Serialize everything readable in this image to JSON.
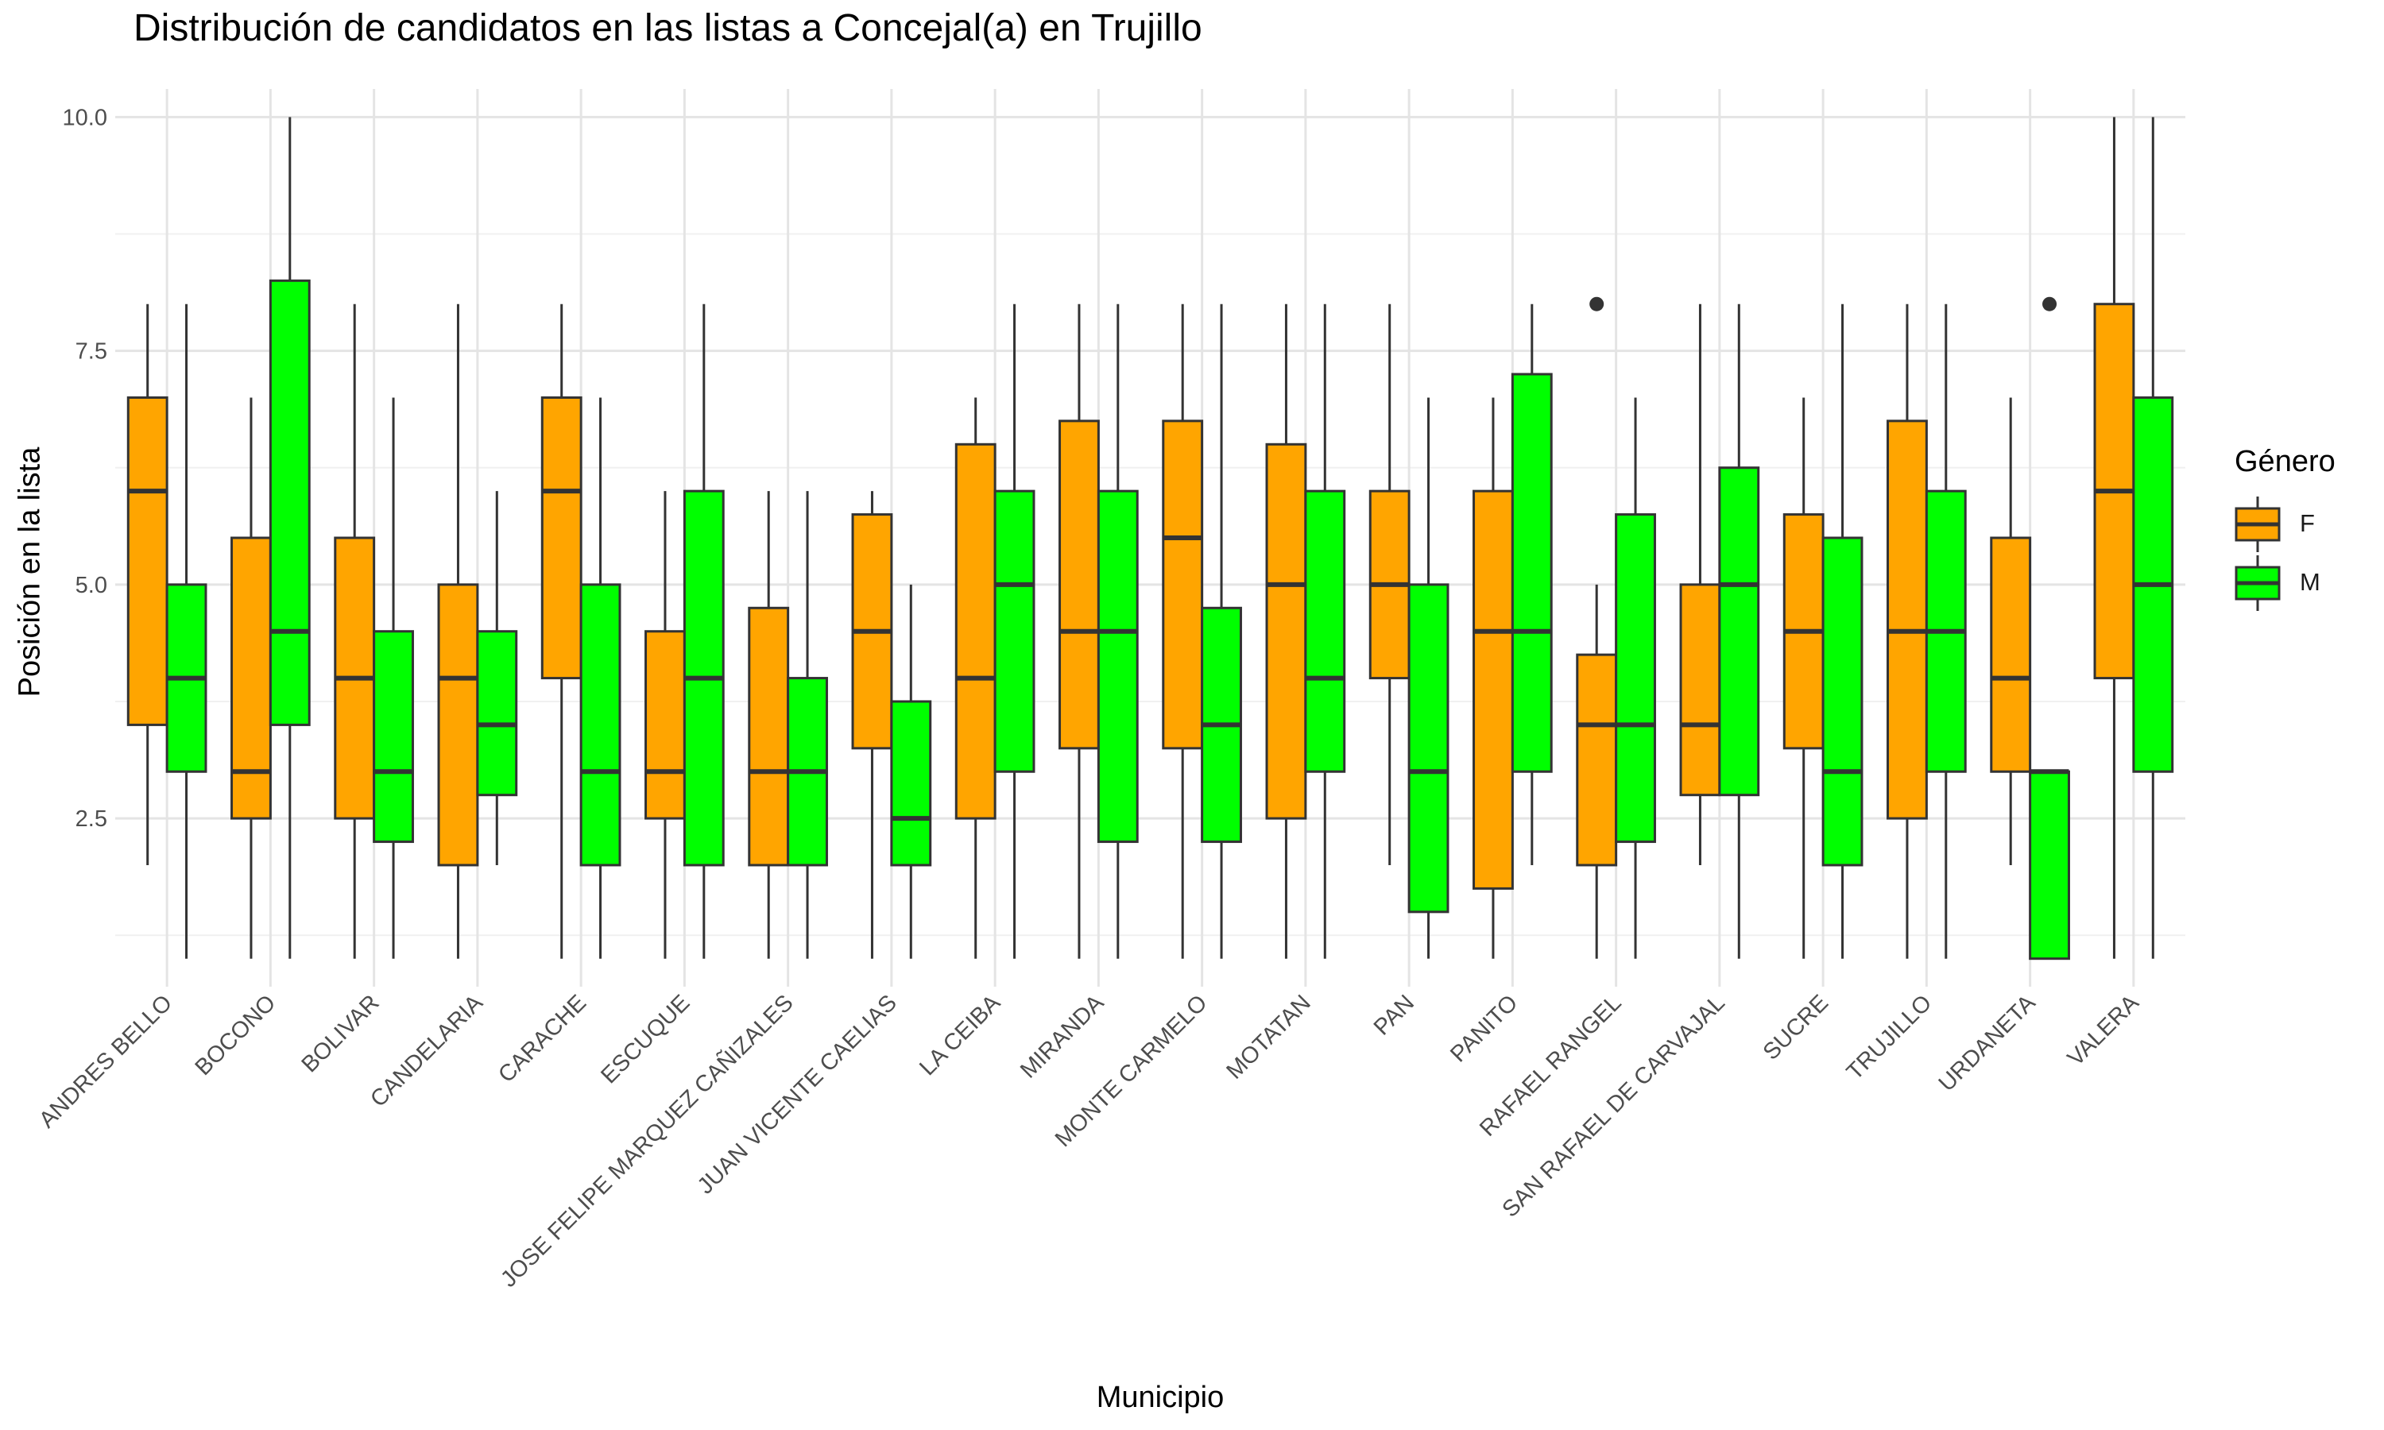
{
  "chart_data": {
    "type": "boxplot",
    "title": "Distribución de candidatos en las listas a Concejal(a) en Trujillo",
    "xlabel": "Municipio",
    "ylabel": "Posición en la lista",
    "ylim": [
      0.7,
      10.3
    ],
    "yticks": [
      "2.5",
      "5.0",
      "7.5",
      "10.0"
    ],
    "ytick_values": [
      2.5,
      5.0,
      7.5,
      10.0
    ],
    "grid": true,
    "legend": {
      "title": "Género",
      "position": "right",
      "entries": [
        {
          "label": "F",
          "color": "#FFA500"
        },
        {
          "label": "M",
          "color": "#00FF00"
        }
      ]
    },
    "categories": [
      "ANDRES BELLO",
      "BOCONO",
      "BOLIVAR",
      "CANDELARIA",
      "CARACHE",
      "ESCUQUE",
      "JOSE FELIPE MARQUEZ CAÑIZALES",
      "JUAN VICENTE CAELIAS",
      "LA CEIBA",
      "MIRANDA",
      "MONTE CARMELO",
      "MOTATAN",
      "PAN",
      "PANITO",
      "RAFAEL RANGEL",
      "SAN RAFAEL DE CARVAJAL",
      "SUCRE",
      "TRUJILLO",
      "URDANETA",
      "VALERA"
    ],
    "series": [
      {
        "name": "F",
        "color": "#FFA500",
        "boxes": [
          {
            "min": 2,
            "q1": 3.5,
            "median": 6,
            "q3": 7,
            "max": 8
          },
          {
            "min": 1,
            "q1": 2.5,
            "median": 3,
            "q3": 5.5,
            "max": 7
          },
          {
            "min": 1,
            "q1": 2.5,
            "median": 4,
            "q3": 5.5,
            "max": 8
          },
          {
            "min": 1,
            "q1": 2,
            "median": 4,
            "q3": 5,
            "max": 8
          },
          {
            "min": 1,
            "q1": 4,
            "median": 6,
            "q3": 7,
            "max": 8
          },
          {
            "min": 1,
            "q1": 2.5,
            "median": 3,
            "q3": 4.5,
            "max": 6
          },
          {
            "min": 1,
            "q1": 2,
            "median": 3,
            "q3": 4.75,
            "max": 6
          },
          {
            "min": 1,
            "q1": 3.25,
            "median": 4.5,
            "q3": 5.75,
            "max": 6
          },
          {
            "min": 1,
            "q1": 2.5,
            "median": 4,
            "q3": 6.5,
            "max": 7
          },
          {
            "min": 1,
            "q1": 3.25,
            "median": 4.5,
            "q3": 6.75,
            "max": 8
          },
          {
            "min": 1,
            "q1": 3.25,
            "median": 5.5,
            "q3": 6.75,
            "max": 8
          },
          {
            "min": 1,
            "q1": 2.5,
            "median": 5,
            "q3": 6.5,
            "max": 8
          },
          {
            "min": 2,
            "q1": 4,
            "median": 5,
            "q3": 6,
            "max": 8
          },
          {
            "min": 1,
            "q1": 1.75,
            "median": 4.5,
            "q3": 6,
            "max": 7
          },
          {
            "min": 1,
            "q1": 2,
            "median": 3.5,
            "q3": 4.25,
            "max": 5,
            "outliers": [
              8
            ]
          },
          {
            "min": 2,
            "q1": 2.75,
            "median": 3.5,
            "q3": 5,
            "max": 8
          },
          {
            "min": 1,
            "q1": 3.25,
            "median": 4.5,
            "q3": 5.75,
            "max": 7
          },
          {
            "min": 1,
            "q1": 2.5,
            "median": 4.5,
            "q3": 6.75,
            "max": 8
          },
          {
            "min": 2,
            "q1": 3,
            "median": 4,
            "q3": 5.5,
            "max": 7
          },
          {
            "min": 1,
            "q1": 4,
            "median": 6,
            "q3": 8,
            "max": 10
          }
        ]
      },
      {
        "name": "M",
        "color": "#00FF00",
        "boxes": [
          {
            "min": 1,
            "q1": 3,
            "median": 4,
            "q3": 5,
            "max": 8
          },
          {
            "min": 1,
            "q1": 3.5,
            "median": 4.5,
            "q3": 8.25,
            "max": 10
          },
          {
            "min": 1,
            "q1": 2.25,
            "median": 3,
            "q3": 4.5,
            "max": 7
          },
          {
            "min": 2,
            "q1": 2.75,
            "median": 3.5,
            "q3": 4.5,
            "max": 6
          },
          {
            "min": 1,
            "q1": 2,
            "median": 3,
            "q3": 5,
            "max": 7
          },
          {
            "min": 1,
            "q1": 2,
            "median": 4,
            "q3": 6,
            "max": 8
          },
          {
            "min": 1,
            "q1": 2,
            "median": 3,
            "q3": 4,
            "max": 6
          },
          {
            "min": 1,
            "q1": 2,
            "median": 2.5,
            "q3": 3.75,
            "max": 5
          },
          {
            "min": 1,
            "q1": 3,
            "median": 5,
            "q3": 6,
            "max": 8
          },
          {
            "min": 1,
            "q1": 2.25,
            "median": 4.5,
            "q3": 6,
            "max": 8
          },
          {
            "min": 1,
            "q1": 2.25,
            "median": 3.5,
            "q3": 4.75,
            "max": 8
          },
          {
            "min": 1,
            "q1": 3,
            "median": 4,
            "q3": 6,
            "max": 8
          },
          {
            "min": 1,
            "q1": 1.5,
            "median": 3,
            "q3": 5,
            "max": 7
          },
          {
            "min": 2,
            "q1": 3,
            "median": 4.5,
            "q3": 7.25,
            "max": 8
          },
          {
            "min": 1,
            "q1": 2.25,
            "median": 3.5,
            "q3": 5.75,
            "max": 7
          },
          {
            "min": 1,
            "q1": 2.75,
            "median": 5,
            "q3": 6.25,
            "max": 8
          },
          {
            "min": 1,
            "q1": 2,
            "median": 3,
            "q3": 5.5,
            "max": 8
          },
          {
            "min": 1,
            "q1": 3,
            "median": 4.5,
            "q3": 6,
            "max": 8
          },
          {
            "min": 1,
            "q1": 1,
            "median": 3,
            "q3": 3,
            "max": 3,
            "outliers": [
              8
            ]
          },
          {
            "min": 1,
            "q1": 3,
            "median": 5,
            "q3": 7,
            "max": 10
          }
        ]
      }
    ]
  }
}
